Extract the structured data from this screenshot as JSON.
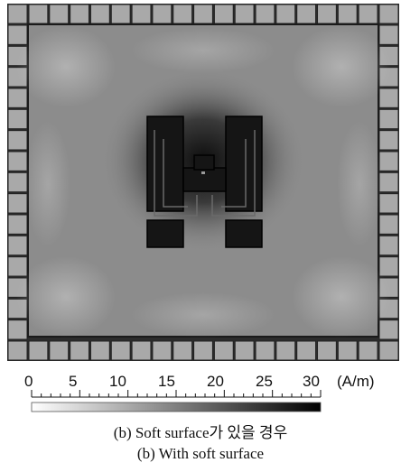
{
  "colorbar": {
    "ticks": [
      "0",
      "5",
      "10",
      "15",
      "20",
      "25",
      "30"
    ],
    "unit": "(A/m)",
    "range": [
      0,
      30
    ],
    "gradient": [
      "#ffffff",
      "#000000"
    ]
  },
  "captions": {
    "korean": "(b) Soft surface가 있을 경우",
    "english": "(b) With soft surface"
  },
  "figure": {
    "border_tile_color": "#a9a9a9",
    "field_base_color": "#8c8c8c",
    "structure_color": "#121212",
    "outline_color": "#000000"
  }
}
